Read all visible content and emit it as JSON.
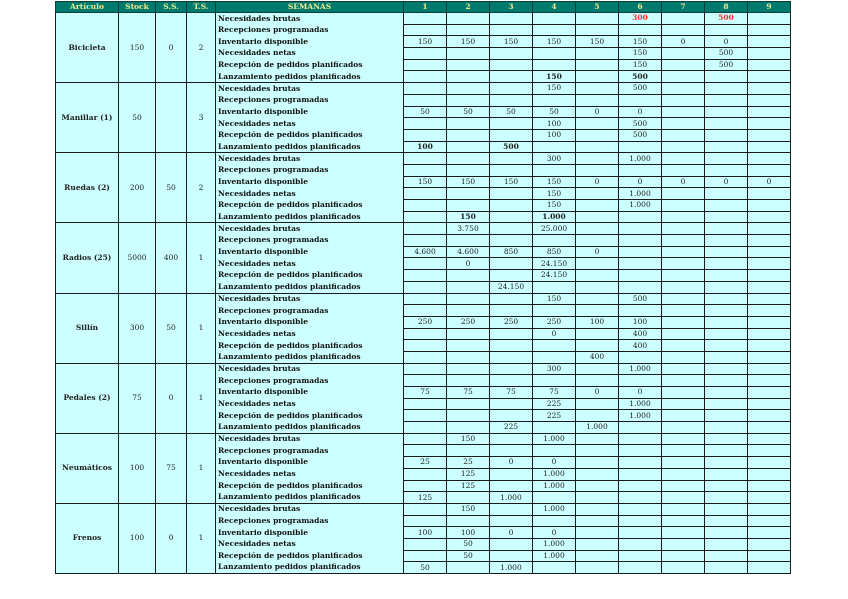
{
  "header": {
    "articulo": "Artículo",
    "stock": "Stock",
    "ss": "S.S.",
    "ts": "T.S.",
    "semanas": "SEMANAS",
    "weeks": [
      "1",
      "2",
      "3",
      "4",
      "5",
      "6",
      "7",
      "8",
      "9"
    ]
  },
  "row_labels": [
    "Necesidades brutas",
    "Recepciones programadas",
    "Inventario disponible",
    "Necesidades netas",
    "Recepción de pedidos planificados",
    "Lanzamiento pedidos planificados"
  ],
  "colors": {
    "header_bg": "#007a6e",
    "header_text": "#f2e98a",
    "cell_bg": "#ccffff",
    "highlight": "#ff2a2a"
  },
  "articles": [
    {
      "name": "Bicicleta",
      "stock": "150",
      "ss": "0",
      "ts": "2",
      "release_bold": true,
      "gross_highlight": true,
      "rows": [
        [
          "",
          "",
          "",
          "",
          "",
          "300",
          "",
          "500",
          ""
        ],
        [
          "",
          "",
          "",
          "",
          "",
          "",
          "",
          "",
          ""
        ],
        [
          "150",
          "150",
          "150",
          "150",
          "150",
          "150",
          "0",
          "0",
          ""
        ],
        [
          "",
          "",
          "",
          "",
          "",
          "150",
          "",
          "500",
          ""
        ],
        [
          "",
          "",
          "",
          "",
          "",
          "150",
          "",
          "500",
          ""
        ],
        [
          "",
          "",
          "",
          "150",
          "",
          "500",
          "",
          "",
          ""
        ]
      ]
    },
    {
      "name": "Manillar (1)",
      "stock": "50",
      "ss": "",
      "ts": "3",
      "release_bold": true,
      "rows": [
        [
          "",
          "",
          "",
          "150",
          "",
          "500",
          "",
          "",
          ""
        ],
        [
          "",
          "",
          "",
          "",
          "",
          "",
          "",
          "",
          ""
        ],
        [
          "50",
          "50",
          "50",
          "50",
          "0",
          "0",
          "",
          "",
          ""
        ],
        [
          "",
          "",
          "",
          "100",
          "",
          "500",
          "",
          "",
          ""
        ],
        [
          "",
          "",
          "",
          "100",
          "",
          "500",
          "",
          "",
          ""
        ],
        [
          "100",
          "",
          "500",
          "",
          "",
          "",
          "",
          "",
          ""
        ]
      ]
    },
    {
      "name": "Ruedas (2)",
      "stock": "200",
      "ss": "50",
      "ts": "2",
      "release_bold": true,
      "rows": [
        [
          "",
          "",
          "",
          "300",
          "",
          "1.000",
          "",
          "",
          ""
        ],
        [
          "",
          "",
          "",
          "",
          "",
          "",
          "",
          "",
          ""
        ],
        [
          "150",
          "150",
          "150",
          "150",
          "0",
          "0",
          "0",
          "0",
          "0"
        ],
        [
          "",
          "",
          "",
          "150",
          "",
          "1.000",
          "",
          "",
          ""
        ],
        [
          "",
          "",
          "",
          "150",
          "",
          "1.000",
          "",
          "",
          ""
        ],
        [
          "",
          "150",
          "",
          "1.000",
          "",
          "",
          "",
          "",
          ""
        ]
      ]
    },
    {
      "name": "Radios (25)",
      "stock": "5000",
      "ss": "400",
      "ts": "1",
      "rows": [
        [
          "",
          "3.750",
          "",
          "25.000",
          "",
          "",
          "",
          "",
          ""
        ],
        [
          "",
          "",
          "",
          "",
          "",
          "",
          "",
          "",
          ""
        ],
        [
          "4.600",
          "4.600",
          "850",
          "850",
          "0",
          "",
          "",
          "",
          ""
        ],
        [
          "",
          "0",
          "",
          "24.150",
          "",
          "",
          "",
          "",
          ""
        ],
        [
          "",
          "",
          "",
          "24.150",
          "",
          "",
          "",
          "",
          ""
        ],
        [
          "",
          "",
          "24.150",
          "",
          "",
          "",
          "",
          "",
          ""
        ]
      ]
    },
    {
      "name": "Sillín",
      "stock": "300",
      "ss": "50",
      "ts": "1",
      "rows": [
        [
          "",
          "",
          "",
          "150",
          "",
          "500",
          "",
          "",
          ""
        ],
        [
          "",
          "",
          "",
          "",
          "",
          "",
          "",
          "",
          ""
        ],
        [
          "250",
          "250",
          "250",
          "250",
          "100",
          "100",
          "",
          "",
          ""
        ],
        [
          "",
          "",
          "",
          "0",
          "",
          "400",
          "",
          "",
          ""
        ],
        [
          "",
          "",
          "",
          "",
          "",
          "400",
          "",
          "",
          ""
        ],
        [
          "",
          "",
          "",
          "",
          "400",
          "",
          "",
          "",
          ""
        ]
      ]
    },
    {
      "name": "Pedales (2)",
      "stock": "75",
      "ss": "0",
      "ts": "1",
      "rows": [
        [
          "",
          "",
          "",
          "300",
          "",
          "1.000",
          "",
          "",
          ""
        ],
        [
          "",
          "",
          "",
          "",
          "",
          "",
          "",
          "",
          ""
        ],
        [
          "75",
          "75",
          "75",
          "75",
          "0",
          "0",
          "",
          "",
          ""
        ],
        [
          "",
          "",
          "",
          "225",
          "",
          "1.000",
          "",
          "",
          ""
        ],
        [
          "",
          "",
          "",
          "225",
          "",
          "1.000",
          "",
          "",
          ""
        ],
        [
          "",
          "",
          "225",
          "",
          "1.000",
          "",
          "",
          "",
          ""
        ]
      ]
    },
    {
      "name": "Neumáticos",
      "stock": "100",
      "ss": "75",
      "ts": "1",
      "rows": [
        [
          "",
          "150",
          "",
          "1.000",
          "",
          "",
          "",
          "",
          ""
        ],
        [
          "",
          "",
          "",
          "",
          "",
          "",
          "",
          "",
          ""
        ],
        [
          "25",
          "25",
          "0",
          "0",
          "",
          "",
          "",
          "",
          ""
        ],
        [
          "",
          "125",
          "",
          "1.000",
          "",
          "",
          "",
          "",
          ""
        ],
        [
          "",
          "125",
          "",
          "1.000",
          "",
          "",
          "",
          "",
          ""
        ],
        [
          "125",
          "",
          "1.000",
          "",
          "",
          "",
          "",
          "",
          ""
        ]
      ]
    },
    {
      "name": "Frenos",
      "stock": "100",
      "ss": "0",
      "ts": "1",
      "rows": [
        [
          "",
          "150",
          "",
          "1.000",
          "",
          "",
          "",
          "",
          ""
        ],
        [
          "",
          "",
          "",
          "",
          "",
          "",
          "",
          "",
          ""
        ],
        [
          "100",
          "100",
          "0",
          "0",
          "",
          "",
          "",
          "",
          ""
        ],
        [
          "",
          "50",
          "",
          "1.000",
          "",
          "",
          "",
          "",
          ""
        ],
        [
          "",
          "50",
          "",
          "1.000",
          "",
          "",
          "",
          "",
          ""
        ],
        [
          "50",
          "",
          "1.000",
          "",
          "",
          "",
          "",
          "",
          ""
        ]
      ]
    }
  ]
}
